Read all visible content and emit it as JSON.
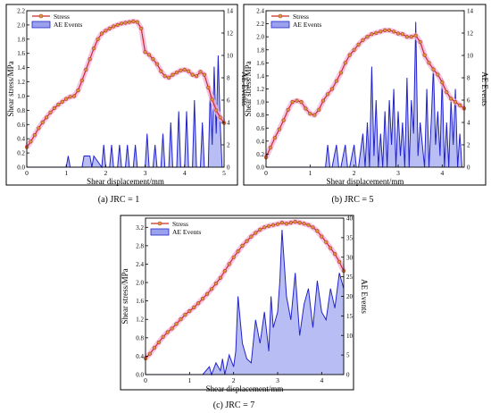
{
  "colors": {
    "stress_line": "#cc2a2a",
    "stress_marker_fill": "#c9a23c",
    "stress_glow": "#f3b5dd",
    "ae_line": "#2222cc",
    "ae_fill": "#9aa2ee",
    "frame": "#000000"
  },
  "chart_data": [
    {
      "type": "line",
      "caption": "(a) JRC = 1",
      "xlabel": "Shear displacement/mm",
      "ylabel": "Shear stress/MPa",
      "y2label": "AE Events",
      "xlim": [
        0,
        5
      ],
      "ylim": [
        0,
        2.2
      ],
      "y2lim": [
        0,
        14
      ],
      "xticks": [
        0,
        1,
        2,
        3,
        4,
        5
      ],
      "yticks": [
        0.0,
        0.2,
        0.4,
        0.6,
        0.8,
        1.0,
        1.2,
        1.4,
        1.6,
        1.8,
        2.0,
        2.2
      ],
      "y2ticks": [
        0,
        2,
        4,
        6,
        8,
        10,
        12,
        14
      ],
      "legend": [
        "Stress",
        "AE Events"
      ],
      "legend_position": "top-left",
      "series": [
        {
          "name": "Stress",
          "axis": "left",
          "x": [
            0.0,
            0.1,
            0.2,
            0.3,
            0.4,
            0.5,
            0.6,
            0.7,
            0.8,
            0.9,
            1.0,
            1.1,
            1.2,
            1.3,
            1.4,
            1.5,
            1.6,
            1.7,
            1.8,
            1.9,
            2.0,
            2.1,
            2.2,
            2.3,
            2.4,
            2.5,
            2.6,
            2.7,
            2.8,
            2.9,
            3.0,
            3.1,
            3.2,
            3.3,
            3.4,
            3.5,
            3.6,
            3.7,
            3.8,
            3.9,
            4.0,
            4.1,
            4.2,
            4.3,
            4.4,
            4.5,
            4.6,
            4.7,
            4.8,
            4.9,
            5.0
          ],
          "y": [
            0.28,
            0.36,
            0.45,
            0.55,
            0.63,
            0.7,
            0.77,
            0.83,
            0.88,
            0.92,
            0.96,
            0.99,
            1.0,
            1.08,
            1.22,
            1.37,
            1.52,
            1.67,
            1.8,
            1.88,
            1.92,
            1.95,
            1.98,
            2.0,
            2.02,
            2.03,
            2.04,
            2.05,
            2.04,
            1.95,
            1.62,
            1.58,
            1.52,
            1.45,
            1.35,
            1.28,
            1.26,
            1.3,
            1.33,
            1.36,
            1.37,
            1.35,
            1.3,
            1.28,
            1.34,
            1.3,
            1.12,
            0.95,
            0.8,
            0.7,
            0.62
          ]
        },
        {
          "name": "AE Events",
          "axis": "right",
          "x": [
            0.0,
            0.5,
            1.0,
            1.05,
            1.1,
            1.4,
            1.45,
            1.5,
            1.6,
            1.65,
            1.7,
            1.9,
            1.95,
            2.0,
            2.1,
            2.15,
            2.2,
            2.3,
            2.35,
            2.4,
            2.5,
            2.55,
            2.6,
            2.7,
            2.75,
            2.8,
            2.9,
            3.0,
            3.05,
            3.1,
            3.2,
            3.25,
            3.3,
            3.4,
            3.45,
            3.5,
            3.6,
            3.65,
            3.7,
            3.8,
            3.85,
            3.9,
            4.0,
            4.05,
            4.1,
            4.2,
            4.25,
            4.3,
            4.4,
            4.45,
            4.5,
            4.6,
            4.65,
            4.7,
            4.75,
            4.8,
            4.85,
            4.9,
            4.95,
            5.0
          ],
          "y": [
            0,
            0,
            0,
            1,
            0,
            0,
            1,
            1,
            1,
            0,
            1,
            0,
            2,
            0,
            0,
            2,
            0,
            0,
            2,
            0,
            0,
            2,
            0,
            0,
            2,
            0,
            0,
            0,
            3,
            0,
            0,
            2,
            0,
            0,
            3,
            0,
            0,
            4,
            0,
            0,
            5,
            0,
            0,
            5,
            0,
            0,
            6,
            0,
            0,
            4,
            0,
            0,
            7,
            2,
            9,
            3,
            10,
            4,
            0,
            0
          ]
        }
      ]
    },
    {
      "type": "line",
      "caption": "(b) JRC = 5",
      "xlabel": "Shear displacement/mm",
      "ylabel": "Shear stress/MPa",
      "y2label": "AE Events",
      "xlim": [
        0,
        4.5
      ],
      "ylim": [
        0,
        2.4
      ],
      "y2lim": [
        0,
        14
      ],
      "xticks": [
        0,
        1,
        2,
        3,
        4
      ],
      "yticks": [
        0.0,
        0.2,
        0.4,
        0.6,
        0.8,
        1.0,
        1.2,
        1.4,
        1.6,
        1.8,
        2.0,
        2.2,
        2.4
      ],
      "y2ticks": [
        0,
        2,
        4,
        6,
        8,
        10,
        12,
        14
      ],
      "legend": [
        "Stress",
        "AE Events"
      ],
      "legend_position": "top-left",
      "series": [
        {
          "name": "Stress",
          "axis": "left",
          "x": [
            0.0,
            0.1,
            0.2,
            0.3,
            0.4,
            0.5,
            0.6,
            0.7,
            0.8,
            0.9,
            1.0,
            1.1,
            1.2,
            1.3,
            1.4,
            1.5,
            1.6,
            1.7,
            1.8,
            1.9,
            2.0,
            2.1,
            2.2,
            2.3,
            2.4,
            2.5,
            2.6,
            2.7,
            2.8,
            2.9,
            3.0,
            3.1,
            3.2,
            3.3,
            3.4,
            3.5,
            3.6,
            3.7,
            3.8,
            3.9,
            4.0,
            4.1,
            4.2,
            4.3,
            4.4,
            4.5
          ],
          "y": [
            0.15,
            0.3,
            0.45,
            0.58,
            0.72,
            0.88,
            1.0,
            1.02,
            1.0,
            0.9,
            0.82,
            0.8,
            0.88,
            1.02,
            1.12,
            1.2,
            1.32,
            1.45,
            1.6,
            1.72,
            1.8,
            1.88,
            1.95,
            2.0,
            2.04,
            2.06,
            2.08,
            2.1,
            2.1,
            2.08,
            2.05,
            2.04,
            2.0,
            2.0,
            2.02,
            1.92,
            1.72,
            1.6,
            1.5,
            1.42,
            1.3,
            1.15,
            1.05,
            1.0,
            0.95,
            0.9
          ]
        },
        {
          "name": "AE Events",
          "axis": "right",
          "x": [
            0.0,
            1.0,
            1.35,
            1.4,
            1.45,
            1.5,
            1.6,
            1.65,
            1.7,
            1.8,
            1.85,
            1.9,
            2.0,
            2.05,
            2.1,
            2.2,
            2.25,
            2.3,
            2.35,
            2.4,
            2.45,
            2.5,
            2.55,
            2.6,
            2.65,
            2.7,
            2.75,
            2.8,
            2.85,
            2.9,
            2.95,
            3.0,
            3.05,
            3.1,
            3.15,
            3.2,
            3.25,
            3.3,
            3.35,
            3.4,
            3.45,
            3.5,
            3.55,
            3.6,
            3.65,
            3.7,
            3.75,
            3.8,
            3.85,
            3.9,
            3.95,
            4.0,
            4.05,
            4.1,
            4.15,
            4.2,
            4.25,
            4.3,
            4.35,
            4.4,
            4.45,
            4.5
          ],
          "y": [
            0,
            0,
            0,
            2,
            0,
            0,
            2,
            0,
            0,
            2,
            0,
            0,
            2,
            0,
            0,
            3,
            0,
            4,
            0,
            9,
            1,
            6,
            0,
            3,
            0,
            5,
            0,
            6,
            2,
            7,
            0,
            5,
            1,
            4,
            0,
            8,
            0,
            6,
            3,
            13,
            1,
            4,
            2,
            0,
            7,
            0,
            4,
            9,
            2,
            5,
            1,
            8,
            0,
            4,
            0,
            6,
            2,
            7,
            0,
            3,
            0,
            0
          ]
        }
      ]
    },
    {
      "type": "line",
      "caption": "(c) JRC = 7",
      "xlabel": "Shear displacement/mm",
      "ylabel": "Shear stress/MPa",
      "y2label": "AE Events",
      "xlim": [
        0,
        4.5
      ],
      "ylim": [
        0,
        3.4
      ],
      "y2lim": [
        0,
        40
      ],
      "xticks": [
        0,
        1,
        2,
        3,
        4
      ],
      "yticks": [
        0.0,
        0.4,
        0.8,
        1.2,
        1.6,
        2.0,
        2.4,
        2.8,
        3.2
      ],
      "y2ticks": [
        0,
        5,
        10,
        15,
        20,
        25,
        30,
        35,
        40
      ],
      "legend": [
        "Stress",
        "AE Events"
      ],
      "legend_position": "top-left",
      "series": [
        {
          "name": "Stress",
          "axis": "left",
          "x": [
            0.0,
            0.1,
            0.2,
            0.3,
            0.4,
            0.5,
            0.6,
            0.7,
            0.8,
            0.9,
            1.0,
            1.1,
            1.2,
            1.3,
            1.4,
            1.5,
            1.6,
            1.7,
            1.8,
            1.9,
            2.0,
            2.1,
            2.2,
            2.3,
            2.4,
            2.5,
            2.6,
            2.7,
            2.8,
            2.9,
            3.0,
            3.1,
            3.2,
            3.3,
            3.4,
            3.5,
            3.6,
            3.7,
            3.8,
            3.9,
            4.0,
            4.1,
            4.2,
            4.3,
            4.4,
            4.5
          ],
          "y": [
            0.35,
            0.45,
            0.58,
            0.7,
            0.82,
            0.92,
            1.0,
            1.1,
            1.2,
            1.3,
            1.38,
            1.46,
            1.55,
            1.65,
            1.75,
            1.86,
            1.98,
            2.1,
            2.25,
            2.4,
            2.55,
            2.68,
            2.8,
            2.9,
            3.0,
            3.08,
            3.15,
            3.2,
            3.23,
            3.25,
            3.27,
            3.3,
            3.28,
            3.3,
            3.32,
            3.3,
            3.28,
            3.25,
            3.2,
            3.12,
            3.0,
            2.88,
            2.75,
            2.62,
            2.45,
            2.25
          ]
        },
        {
          "name": "AE Events",
          "axis": "right",
          "x": [
            0.0,
            1.3,
            1.45,
            1.5,
            1.6,
            1.7,
            1.75,
            1.8,
            1.9,
            2.0,
            2.05,
            2.1,
            2.2,
            2.3,
            2.4,
            2.5,
            2.6,
            2.7,
            2.8,
            2.85,
            2.9,
            3.0,
            3.05,
            3.1,
            3.2,
            3.3,
            3.4,
            3.5,
            3.6,
            3.7,
            3.8,
            3.9,
            4.0,
            4.1,
            4.2,
            4.3,
            4.4,
            4.5
          ],
          "y": [
            0,
            0,
            2,
            0,
            3,
            1,
            4,
            0,
            5,
            2,
            6,
            20,
            8,
            4,
            3,
            14,
            8,
            16,
            6,
            20,
            12,
            16,
            24,
            37,
            20,
            14,
            26,
            10,
            18,
            22,
            12,
            24,
            16,
            14,
            22,
            17,
            26,
            22
          ]
        }
      ]
    }
  ]
}
